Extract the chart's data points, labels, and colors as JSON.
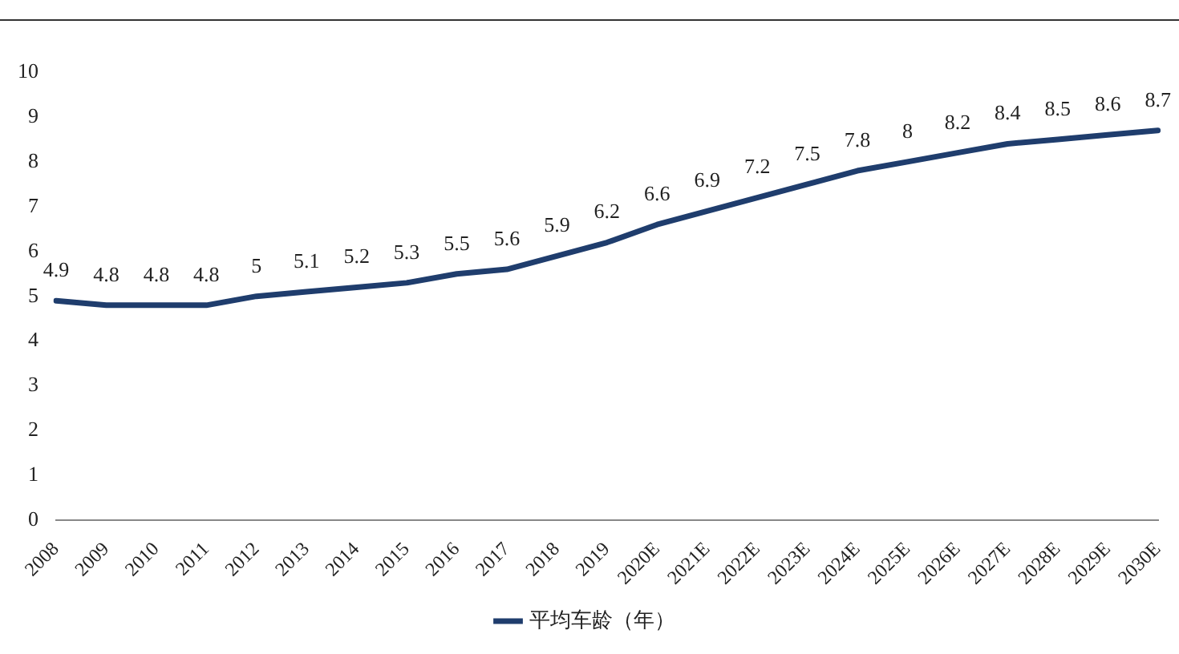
{
  "chart_data": {
    "type": "line",
    "categories": [
      "2008",
      "2009",
      "2010",
      "2011",
      "2012",
      "2013",
      "2014",
      "2015",
      "2016",
      "2017",
      "2018",
      "2019",
      "2020E",
      "2021E",
      "2022E",
      "2023E",
      "2024E",
      "2025E",
      "2026E",
      "2027E",
      "2028E",
      "2029E",
      "2030E"
    ],
    "series": [
      {
        "name": "平均车龄（年）",
        "color": "#1f3d6d",
        "values": [
          4.9,
          4.8,
          4.8,
          4.8,
          5,
          5.1,
          5.2,
          5.3,
          5.5,
          5.6,
          5.9,
          6.2,
          6.6,
          6.9,
          7.2,
          7.5,
          7.8,
          8,
          8.2,
          8.4,
          8.5,
          8.6,
          8.7
        ]
      }
    ],
    "ylim": [
      0,
      10
    ],
    "yticks": [
      0,
      1,
      2,
      3,
      4,
      5,
      6,
      7,
      8,
      9,
      10
    ],
    "grid": false,
    "legend": "bottom",
    "marker": "none",
    "line_style": "solid",
    "data_labels": true
  }
}
